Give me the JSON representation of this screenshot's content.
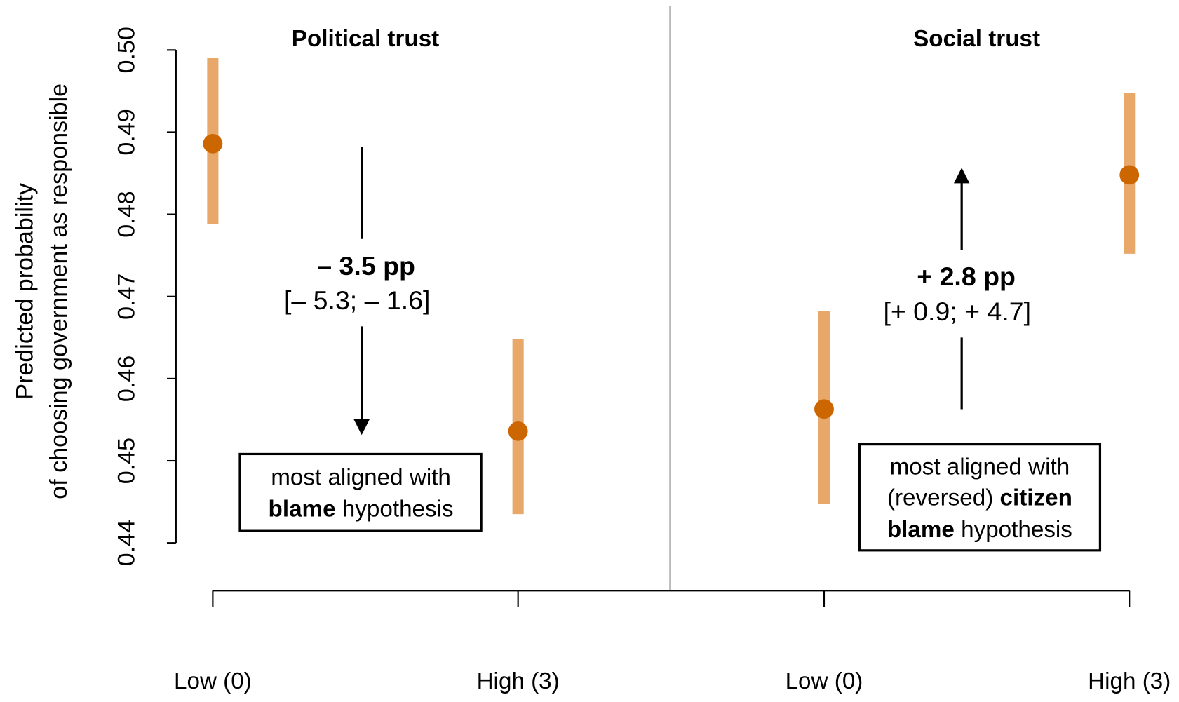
{
  "chart_data": {
    "type": "errorbar",
    "y_label": [
      "Predicted probability",
      "of choosing government as responsible"
    ],
    "ylim": [
      0.44,
      0.5
    ],
    "yticks": [
      0.44,
      0.45,
      0.46,
      0.47,
      0.48,
      0.49,
      {
        "value": 0.5,
        "label": "0.50"
      }
    ],
    "point_color": "#cc6600",
    "bar_color": "#e8a86a",
    "panels": [
      {
        "title": "Political trust",
        "categories": [
          "Low (0)",
          "High (3)"
        ],
        "values": [
          0.4886,
          0.4536
        ],
        "lower": [
          0.4788,
          0.4435
        ],
        "upper": [
          0.499,
          0.4648
        ],
        "effect": "– 3.5 pp",
        "interval": "[– 5.3; – 1.6]",
        "box": [
          [
            {
              "text": "most aligned with",
              "bold": false
            }
          ],
          [
            {
              "text": "blame",
              "bold": true
            },
            {
              "text": " hypothesis",
              "bold": false
            }
          ]
        ]
      },
      {
        "title": "Social trust",
        "categories": [
          "Low (0)",
          "High (3)"
        ],
        "values": [
          0.4563,
          0.4848
        ],
        "lower": [
          0.4448,
          0.4752
        ],
        "upper": [
          0.4682,
          0.4948
        ],
        "effect": "+ 2.8 pp",
        "interval": "[+ 0.9; + 4.7]",
        "box": [
          [
            {
              "text": "most aligned with",
              "bold": false
            }
          ],
          [
            {
              "text": "(reversed) ",
              "bold": false
            },
            {
              "text": "citizen",
              "bold": true
            }
          ],
          [
            {
              "text": "blame",
              "bold": true
            },
            {
              "text": " hypothesis",
              "bold": false
            }
          ]
        ]
      }
    ]
  }
}
